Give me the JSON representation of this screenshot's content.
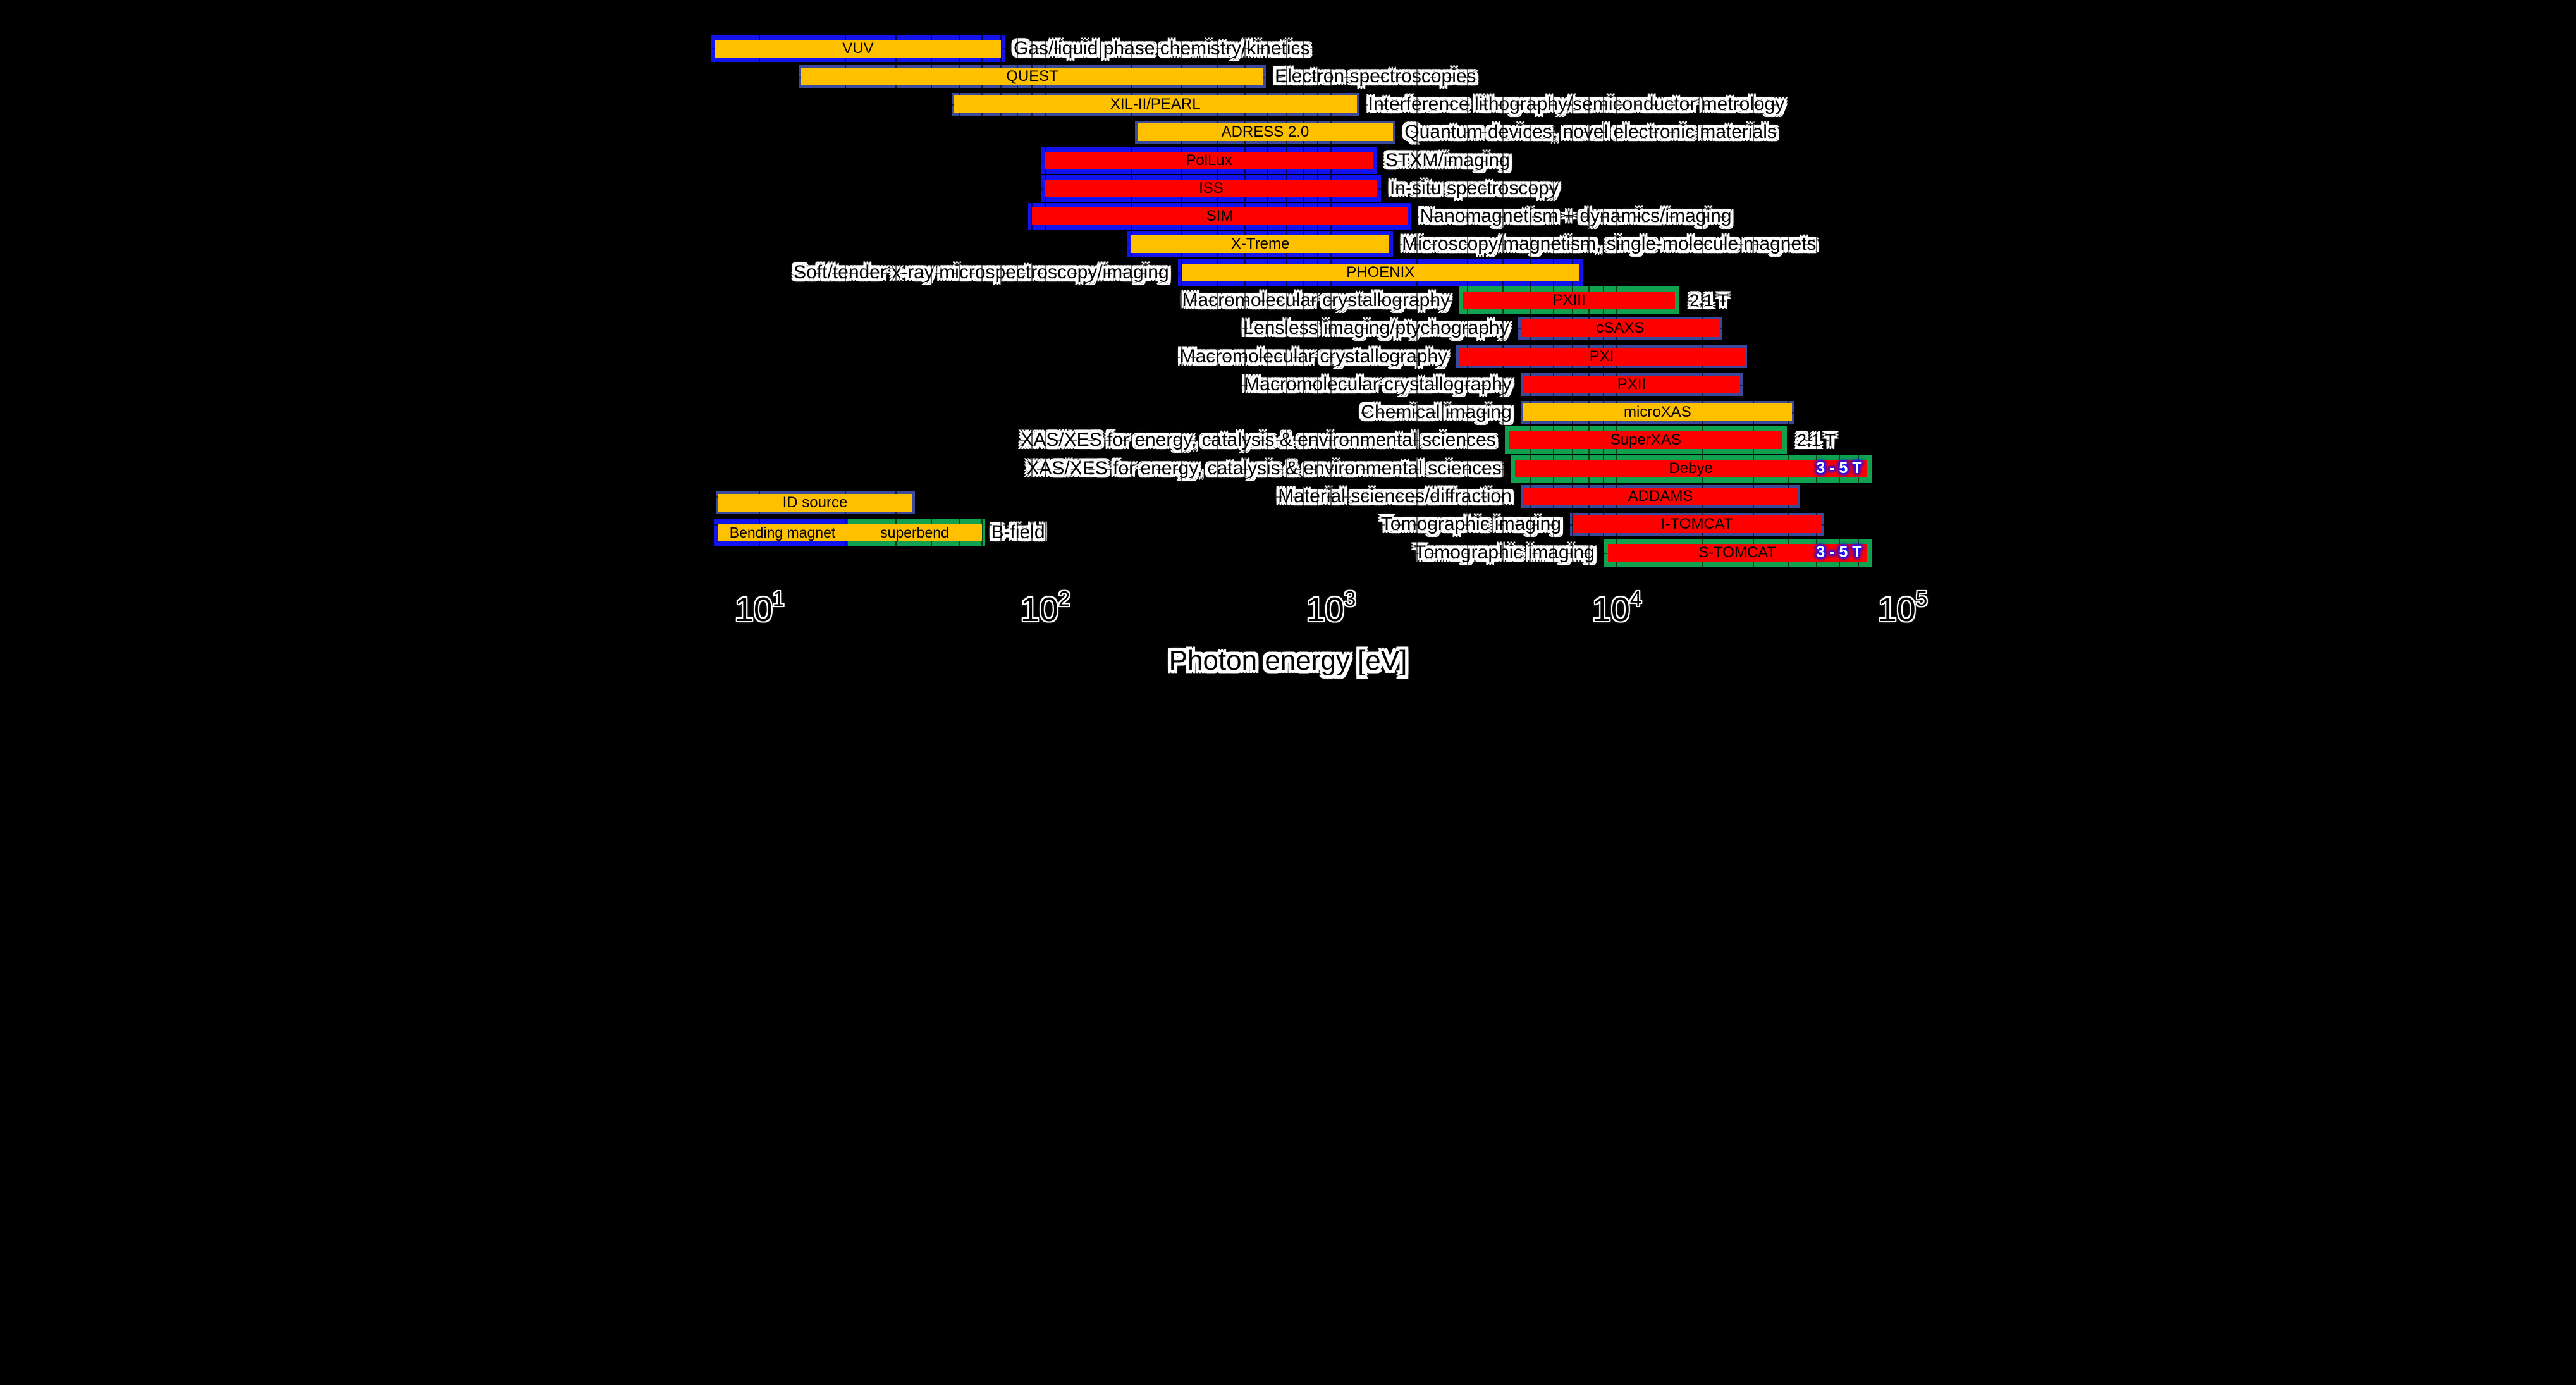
{
  "colors": {
    "background": "#000000",
    "orange_fill": "#ffc000",
    "red_fill": "#fe0000",
    "blue_border": "#1313ef",
    "navy_border": "#3b4a9b",
    "green_border": "#10a24e",
    "text": "#000000",
    "halo": "#ffffff",
    "badge_text": "#ffffff",
    "badge_glow": "#1616ff"
  },
  "chart_data": {
    "type": "bar",
    "orientation": "horizontal-log-ranges",
    "xlabel": "Photon energy  [eV]",
    "x_axis": {
      "scale": "log",
      "unit": "eV",
      "min": 4,
      "max": 126000,
      "ticks": [
        {
          "value": 10,
          "base": "10",
          "exp": "1"
        },
        {
          "value": 100,
          "base": "10",
          "exp": "2"
        },
        {
          "value": 1000,
          "base": "10",
          "exp": "3"
        },
        {
          "value": 10000,
          "base": "10",
          "exp": "4"
        },
        {
          "value": 100000,
          "base": "10",
          "exp": "5"
        }
      ],
      "grid": "minor-vertical-and-dashed-horizontal"
    },
    "series": [
      {
        "name": "VUV",
        "fill": "orange",
        "border": "blue",
        "range_eV": [
          7,
          70
        ],
        "desc": "Gas/liquid phase chemistry/kinetics",
        "desc_side": "right"
      },
      {
        "name": "QUEST",
        "fill": "orange",
        "border": "navy",
        "range_eV": [
          14,
          580
        ],
        "desc": "Electron spectroscopies",
        "desc_side": "right"
      },
      {
        "name": "XIL-II/PEARL",
        "fill": "orange",
        "border": "navy",
        "range_eV": [
          48,
          1230
        ],
        "desc": "Interference lithography/semiconductor metrology",
        "desc_side": "right"
      },
      {
        "name": "ADRESS 2.0",
        "fill": "orange",
        "border": "navy",
        "range_eV": [
          210,
          1650
        ],
        "desc": "Quantum devices, novel electronic materials",
        "desc_side": "right"
      },
      {
        "name": "PolLux",
        "fill": "red",
        "border": "blue",
        "range_eV": [
          100,
          1400
        ],
        "desc": "STXM/imaging",
        "desc_side": "right"
      },
      {
        "name": "ISS",
        "fill": "red",
        "border": "blue",
        "range_eV": [
          100,
          1450
        ],
        "desc": "In-situ spectroscopy",
        "desc_side": "right"
      },
      {
        "name": "SIM",
        "fill": "red",
        "border": "blue",
        "range_eV": [
          90,
          1850
        ],
        "desc": "Nanomagnetism + dynamics/imaging",
        "desc_side": "right"
      },
      {
        "name": "X-Treme",
        "fill": "orange",
        "border": "blue",
        "range_eV": [
          200,
          1600
        ],
        "desc": "Microscopy/magnetism, single-molecule magnets",
        "desc_side": "right"
      },
      {
        "name": "PHOENIX",
        "fill": "orange",
        "border": "blue",
        "range_eV": [
          300,
          7400
        ],
        "desc": "Soft/tender x-ray microspectroscopy/imaging",
        "desc_side": "left"
      },
      {
        "name": "PXIII",
        "fill": "red",
        "border": "green",
        "range_eV": [
          2900,
          16000
        ],
        "desc": "Macromolecular crystallography",
        "desc_side": "left",
        "field": "2.1 T",
        "field_style": "outside"
      },
      {
        "name": "cSAXS",
        "fill": "red",
        "border": "navy",
        "range_eV": [
          4600,
          23000
        ],
        "desc": "Lensless imaging/ptychography",
        "desc_side": "left"
      },
      {
        "name": "PXI",
        "fill": "red",
        "border": "navy",
        "range_eV": [
          2800,
          28000
        ],
        "desc": "Macromolecular crystallography",
        "desc_side": "left"
      },
      {
        "name": "PXII",
        "fill": "red",
        "border": "navy",
        "range_eV": [
          4700,
          27000
        ],
        "desc": "Macromolecular crystallography",
        "desc_side": "left"
      },
      {
        "name": "microXAS",
        "fill": "orange",
        "border": "navy",
        "range_eV": [
          4700,
          41000
        ],
        "desc": "Chemical imaging",
        "desc_side": "left"
      },
      {
        "name": "SuperXAS",
        "fill": "red",
        "border": "green",
        "range_eV": [
          4200,
          38000
        ],
        "desc": "XAS/XES for energy, catalysis & environmental sciences",
        "desc_side": "left",
        "field": "2.1 T",
        "field_style": "outside"
      },
      {
        "name": "Debye",
        "fill": "red",
        "border": "green",
        "range_eV": [
          4400,
          75000
        ],
        "desc": "XAS/XES for energy, catalysis & environmental sciences",
        "desc_side": "left",
        "field": "3 - 5 T",
        "field_style": "inside"
      },
      {
        "name": "ADDAMS",
        "fill": "red",
        "border": "navy",
        "range_eV": [
          4700,
          43000
        ],
        "desc": "Material sciences/diffraction",
        "desc_side": "left"
      },
      {
        "name": "I-TOMCAT",
        "fill": "red",
        "border": "navy",
        "range_eV": [
          7000,
          52000
        ],
        "desc": "Tomographic imaging",
        "desc_side": "left"
      },
      {
        "name": "S-TOMCAT",
        "fill": "red",
        "border": "green",
        "range_eV": [
          9300,
          75000
        ],
        "desc": "Tomographic imaging",
        "desc_side": "left",
        "field": "3 - 5 T",
        "field_style": "inside"
      }
    ],
    "legend": {
      "id_source": "ID source",
      "bending_magnet": "Bending magnet",
      "superbend": "superbend",
      "b_field": "B-field"
    }
  }
}
